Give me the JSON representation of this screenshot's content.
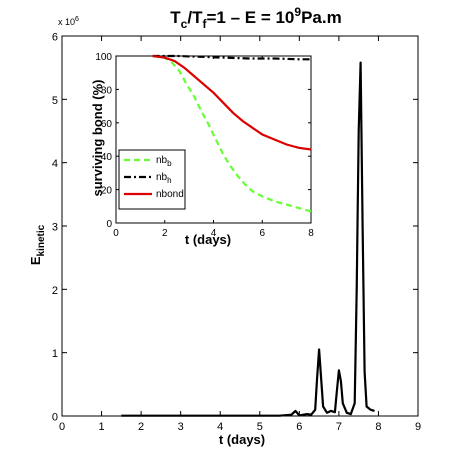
{
  "chart_data": [
    {
      "type": "line",
      "title": {
        "base": "T",
        "sub1": "c",
        "mid": "/T",
        "sub2": "f",
        "rest": "=1   –   E = 10",
        "sup": "9",
        "tail": "Pa.m"
      },
      "xlabel": "t (days)",
      "ylabel": {
        "base": "E",
        "sub": "kinetic"
      },
      "y_multiplier": "x 10",
      "y_multiplier_exp": "6",
      "xlim": [
        0,
        9
      ],
      "ylim": [
        0,
        6
      ],
      "xticks": [
        "0",
        "1",
        "2",
        "3",
        "4",
        "5",
        "6",
        "7",
        "8",
        "9"
      ],
      "yticks": [
        "0",
        "1",
        "2",
        "3",
        "4",
        "5",
        "6"
      ],
      "series": [
        {
          "color": "#000000",
          "x": [
            1.5,
            2.0,
            2.5,
            3.0,
            3.5,
            4.0,
            4.5,
            5.0,
            5.5,
            5.8,
            5.9,
            6.0,
            6.1,
            6.2,
            6.3,
            6.4,
            6.45,
            6.5,
            6.55,
            6.6,
            6.7,
            6.8,
            6.9,
            6.95,
            7.0,
            7.05,
            7.1,
            7.2,
            7.3,
            7.4,
            7.45,
            7.5,
            7.55,
            7.6,
            7.65,
            7.7,
            7.8,
            7.9
          ],
          "y": [
            0.005,
            0.005,
            0.005,
            0.005,
            0.005,
            0.005,
            0.005,
            0.005,
            0.005,
            0.02,
            0.08,
            0.01,
            0.02,
            0.03,
            0.02,
            0.1,
            0.6,
            1.05,
            0.6,
            0.15,
            0.05,
            0.08,
            0.06,
            0.4,
            0.72,
            0.55,
            0.2,
            0.05,
            0.03,
            0.2,
            2.0,
            4.5,
            5.58,
            3.0,
            0.7,
            0.15,
            0.1,
            0.08
          ]
        }
      ]
    },
    {
      "type": "line",
      "xlabel": "t (days)",
      "ylabel": "surviving bond (%)",
      "xlim": [
        0,
        8
      ],
      "ylim": [
        0,
        100
      ],
      "xticks": [
        "0",
        "2",
        "4",
        "6",
        "8"
      ],
      "yticks": [
        "0",
        "20",
        "40",
        "60",
        "80",
        "100"
      ],
      "legend_position": "bottom-left",
      "series": [
        {
          "name": {
            "base": "nb",
            "sub": "b"
          },
          "color": "#66ff33",
          "dash": "dashed",
          "x": [
            1.5,
            2.0,
            2.3,
            2.6,
            2.9,
            3.2,
            3.5,
            3.8,
            4.1,
            4.4,
            4.7,
            5.0,
            5.3,
            5.6,
            6.0,
            6.5,
            7.0,
            7.5,
            8.0
          ],
          "y": [
            100,
            99,
            96,
            91,
            83,
            76,
            67,
            59,
            50,
            41,
            34,
            28,
            23,
            19,
            16,
            13,
            11,
            9,
            7
          ]
        },
        {
          "name": {
            "base": "nb",
            "sub": "h"
          },
          "color": "#000000",
          "dash": "dashdot",
          "x": [
            1.5,
            2.5,
            3.5,
            4.5,
            5.5,
            6.5,
            7.5,
            8.0
          ],
          "y": [
            100,
            100,
            99.5,
            99,
            98.5,
            98.5,
            98,
            98
          ]
        },
        {
          "name": "nbond",
          "color": "#dd0000",
          "dash": "solid",
          "x": [
            1.5,
            2.0,
            2.4,
            2.8,
            3.2,
            3.6,
            4.0,
            4.4,
            4.8,
            5.2,
            5.6,
            6.0,
            6.5,
            7.0,
            7.5,
            8.0
          ],
          "y": [
            100,
            99,
            97,
            93,
            88,
            83,
            78,
            72,
            66,
            61,
            57,
            53,
            50,
            47,
            45,
            44
          ]
        }
      ]
    }
  ]
}
